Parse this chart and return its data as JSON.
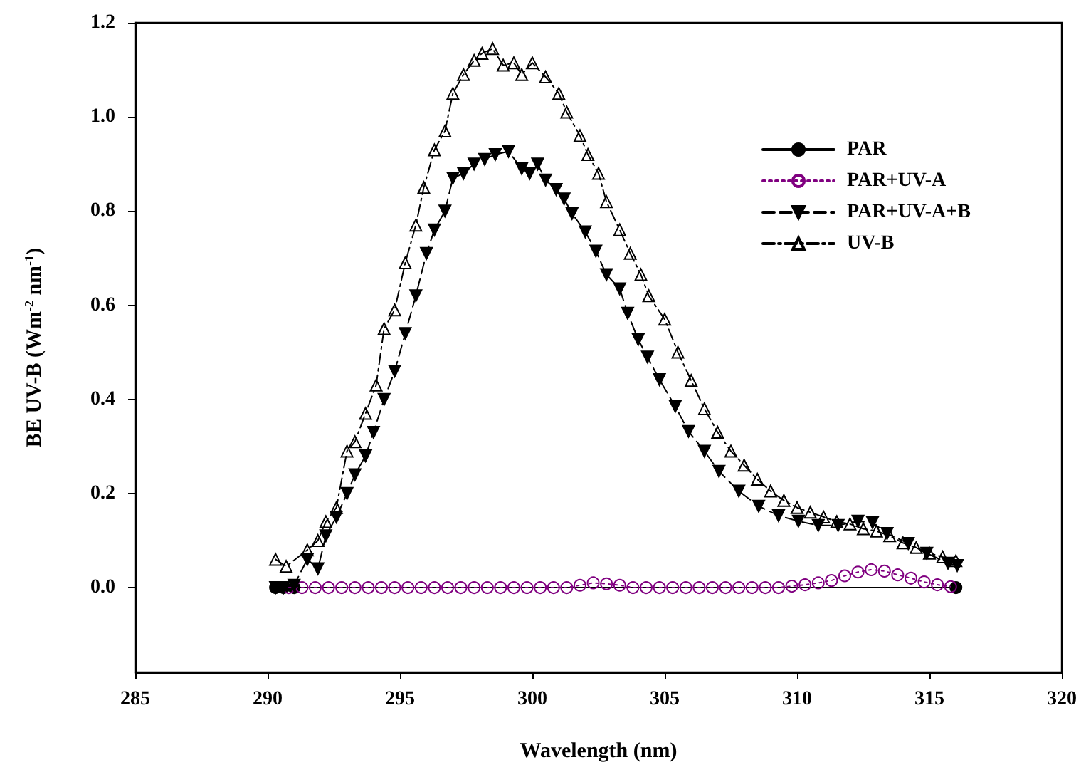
{
  "chart_data": {
    "type": "line",
    "xlabel": "Wavelength (nm)",
    "ylabel": "BE UV-B (Wm$^{-2}$ nm$^{-1}$)",
    "xlim": [
      285,
      320
    ],
    "xticks": [
      285,
      290,
      295,
      300,
      305,
      310,
      315,
      320
    ],
    "ylim": [
      -0.18,
      1.2
    ],
    "yticks": [
      {
        "value": 0,
        "label": "0.0"
      },
      {
        "value": 0.2,
        "label": "0.2"
      },
      {
        "value": 0.4,
        "label": "0.4"
      },
      {
        "value": 0.6,
        "label": "0.6"
      },
      {
        "value": 0.8,
        "label": "0.8"
      },
      {
        "value": 1.0,
        "label": "1.0"
      },
      {
        "value": 1.2,
        "label": "1.2"
      }
    ],
    "grid": false,
    "legend": "top right",
    "series": [
      {
        "name": "PAR",
        "color": "#000000",
        "marker": "circle",
        "line_style": "solid",
        "x": [
          290.3,
          290.6,
          291.0,
          316.0
        ],
        "values": [
          0,
          0,
          0,
          0
        ]
      },
      {
        "name": "PAR+UV-A",
        "color": "#800080",
        "marker": "circle-open",
        "line_style": "dotted",
        "x": [
          290.8,
          291.3,
          291.8,
          292.3,
          292.8,
          293.3,
          293.8,
          294.3,
          294.8,
          295.3,
          295.8,
          296.3,
          296.8,
          297.3,
          297.8,
          298.3,
          298.8,
          299.3,
          299.8,
          300.3,
          300.8,
          301.3,
          301.8,
          302.3,
          302.8,
          303.3,
          303.8,
          304.3,
          304.8,
          305.3,
          305.8,
          306.3,
          306.8,
          307.3,
          307.8,
          308.3,
          308.8,
          309.3,
          309.8,
          310.3,
          310.8,
          311.3,
          311.8,
          312.3,
          312.8,
          313.3,
          313.8,
          314.3,
          314.8,
          315.3,
          315.8
        ],
        "values": [
          0,
          0,
          0,
          0,
          0,
          0,
          0,
          0,
          0,
          0,
          0,
          0,
          0,
          0,
          0,
          0,
          0,
          0,
          0,
          0,
          0,
          0,
          0.005,
          0.01,
          0.008,
          0.005,
          0,
          0,
          0,
          0,
          0,
          0,
          0,
          0,
          0,
          0,
          0,
          0,
          0.003,
          0.006,
          0.01,
          0.015,
          0.025,
          0.033,
          0.038,
          0.035,
          0.027,
          0.02,
          0.012,
          0.006,
          0.002
        ]
      },
      {
        "name": "PAR+UV-A+B",
        "color": "#000000",
        "marker": "triangle-down",
        "line_style": "dashed",
        "x": [
          290.3,
          290.6,
          291.0,
          291.5,
          291.9,
          292.2,
          292.6,
          293.0,
          293.3,
          293.7,
          294.0,
          294.4,
          294.8,
          295.2,
          295.6,
          296.0,
          296.3,
          296.7,
          297.0,
          297.4,
          297.8,
          298.2,
          298.6,
          299.1,
          299.6,
          299.9,
          300.2,
          300.5,
          300.9,
          301.2,
          301.5,
          302.0,
          302.4,
          302.8,
          303.3,
          303.6,
          304.0,
          304.35,
          304.8,
          305.4,
          305.9,
          306.5,
          307.05,
          307.8,
          308.55,
          309.3,
          310.05,
          310.8,
          311.55,
          312.3,
          312.85,
          313.4,
          314.2,
          314.9,
          315.7,
          316.05
        ],
        "values": [
          0,
          0,
          0.005,
          0.06,
          0.04,
          0.11,
          0.15,
          0.2,
          0.24,
          0.28,
          0.33,
          0.4,
          0.46,
          0.54,
          0.62,
          0.71,
          0.76,
          0.8,
          0.87,
          0.88,
          0.9,
          0.91,
          0.92,
          0.927,
          0.89,
          0.88,
          0.9,
          0.866,
          0.846,
          0.826,
          0.795,
          0.756,
          0.715,
          0.665,
          0.635,
          0.583,
          0.527,
          0.49,
          0.442,
          0.385,
          0.332,
          0.29,
          0.247,
          0.205,
          0.173,
          0.153,
          0.141,
          0.132,
          0.132,
          0.141,
          0.138,
          0.115,
          0.094,
          0.073,
          0.052,
          0.047
        ]
      },
      {
        "name": "UV-B",
        "color": "#000000",
        "marker": "triangle-open",
        "line_style": "dashdot",
        "x": [
          290.3,
          290.7,
          291.5,
          291.9,
          292.2,
          292.6,
          293.0,
          293.3,
          293.7,
          294.1,
          294.4,
          294.8,
          295.2,
          295.6,
          295.9,
          296.3,
          296.7,
          297.0,
          297.4,
          297.8,
          298.1,
          298.5,
          298.9,
          299.3,
          299.6,
          300.0,
          300.5,
          301.0,
          301.3,
          301.8,
          302.1,
          302.5,
          302.8,
          303.3,
          303.7,
          304.1,
          304.4,
          305.0,
          305.5,
          306.0,
          306.5,
          307.0,
          307.5,
          308.0,
          308.5,
          309.0,
          309.5,
          310.0,
          310.5,
          311.0,
          311.5,
          312.0,
          312.5,
          313.0,
          313.5,
          314.0,
          314.5,
          315.0,
          315.5,
          316.0
        ],
        "values": [
          0.06,
          0.045,
          0.08,
          0.1,
          0.14,
          0.17,
          0.29,
          0.31,
          0.37,
          0.43,
          0.55,
          0.59,
          0.69,
          0.77,
          0.85,
          0.93,
          0.97,
          1.05,
          1.09,
          1.12,
          1.135,
          1.145,
          1.11,
          1.115,
          1.09,
          1.115,
          1.085,
          1.05,
          1.01,
          0.96,
          0.92,
          0.88,
          0.82,
          0.76,
          0.71,
          0.665,
          0.62,
          0.57,
          0.5,
          0.44,
          0.38,
          0.33,
          0.29,
          0.26,
          0.23,
          0.205,
          0.185,
          0.17,
          0.16,
          0.15,
          0.14,
          0.135,
          0.125,
          0.12,
          0.11,
          0.095,
          0.085,
          0.073,
          0.065,
          0.057
        ]
      }
    ]
  }
}
